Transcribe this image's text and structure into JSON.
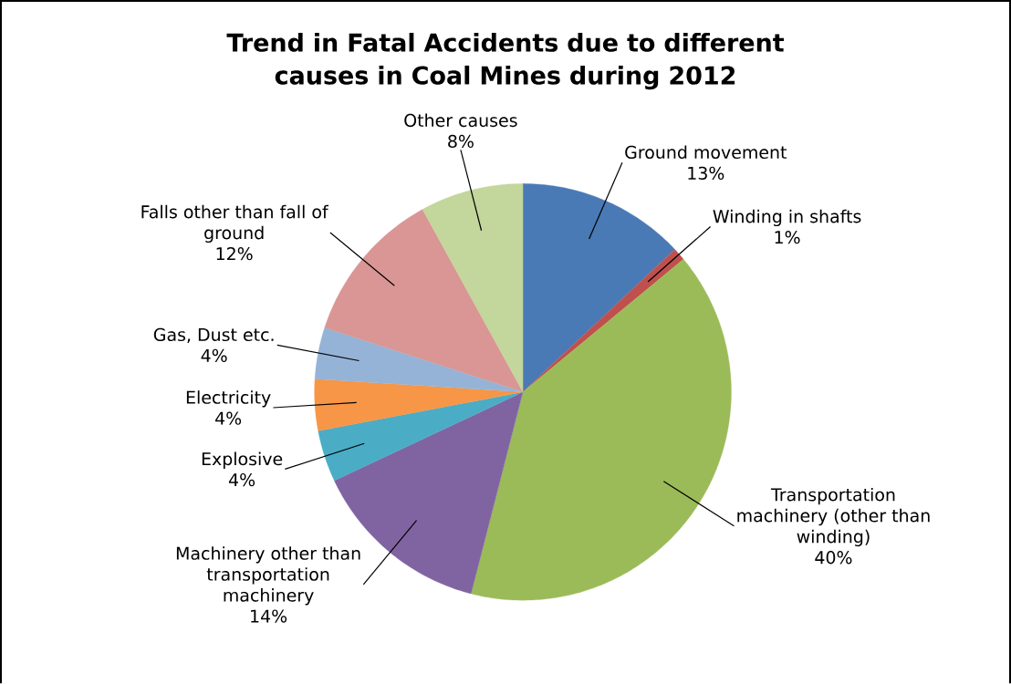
{
  "chart_data": {
    "type": "pie",
    "title": "Trend in Fatal Accidents due to different causes in Coal Mines during 2012",
    "categories": [
      "Ground movement",
      "Winding in shafts",
      "Transportation machinery (other than winding)",
      "Machinery other than transportation machinery",
      "Explosive",
      "Electricity",
      "Gas, Dust etc.",
      "Falls other than fall of ground",
      "Other causes"
    ],
    "values": [
      13,
      1,
      40,
      14,
      4,
      4,
      4,
      12,
      8
    ],
    "value_labels": [
      "13%",
      "1%",
      "40%",
      "14%",
      "4%",
      "4%",
      "4%",
      "12%",
      "8%"
    ],
    "colors": [
      "#4a7ab5",
      "#c0504d",
      "#9bbb59",
      "#8064a2",
      "#4bacc6",
      "#f79646",
      "#95b3d7",
      "#d99694",
      "#c3d69b"
    ]
  }
}
